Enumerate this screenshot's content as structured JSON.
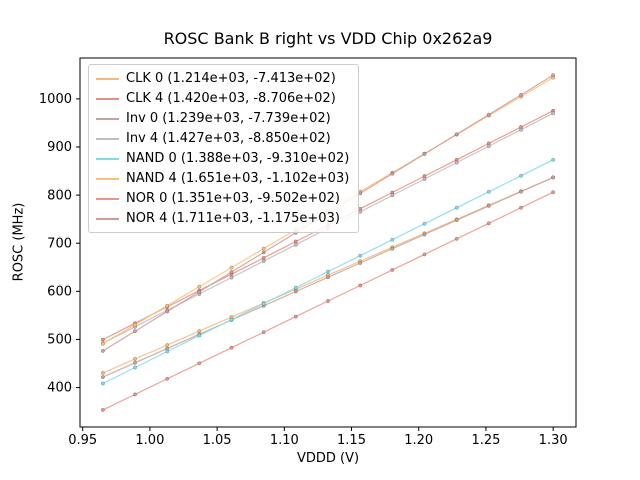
{
  "figure": {
    "title": "ROSC Bank B right vs VDD Chip 0x262a9",
    "xlabel": "VDDD (V)",
    "ylabel": "ROSC (MHz)"
  },
  "chart_data": {
    "type": "line",
    "title": "ROSC Bank B right vs VDD Chip 0x262a9",
    "xlabel": "VDDD (V)",
    "ylabel": "ROSC (MHz)",
    "xlim": [
      0.948,
      1.317
    ],
    "ylim": [
      318,
      1085
    ],
    "xticks": [
      0.95,
      1.0,
      1.05,
      1.1,
      1.15,
      1.2,
      1.25,
      1.3
    ],
    "xtick_labels": [
      "0.95",
      "1.00",
      "1.05",
      "1.10",
      "1.15",
      "1.20",
      "1.25",
      "1.30"
    ],
    "yticks": [
      400,
      500,
      600,
      700,
      800,
      900,
      1000
    ],
    "ytick_labels": [
      "400",
      "500",
      "600",
      "700",
      "800",
      "900",
      "1000"
    ],
    "x_points": {
      "start": 0.965,
      "end": 1.3,
      "count": 15
    },
    "grid": false,
    "legend_position": "upper left",
    "note": "each series is a linear fit ROSC = slope*VDDD + intercept, legend shows (slope, intercept)",
    "series": [
      {
        "name": "CLK 0",
        "label": "CLK 0 (1.214e+03, -7.413e+02)",
        "slope": 1214,
        "intercept": -741.3,
        "color": "#f5b97f"
      },
      {
        "name": "CLK 4",
        "label": "CLK 4 (1.420e+03, -8.706e+02)",
        "slope": 1420,
        "intercept": -870.6,
        "color": "#ec8b80"
      },
      {
        "name": "Inv 0",
        "label": "Inv 0 (1.239e+03, -7.739e+02)",
        "slope": 1239,
        "intercept": -773.9,
        "color": "#c0a49e"
      },
      {
        "name": "Inv 4",
        "label": "Inv 4 (1.427e+03, -8.850e+02)",
        "slope": 1427,
        "intercept": -885.0,
        "color": "#bdbdbd"
      },
      {
        "name": "NAND 0",
        "label": "NAND 0 (1.388e+03, -9.310e+02)",
        "slope": 1388,
        "intercept": -931.0,
        "color": "#85dbe4"
      },
      {
        "name": "NAND 4",
        "label": "NAND 4 (1.651e+03, -1.102e+03)",
        "slope": 1651,
        "intercept": -1102.0,
        "color": "#f9c178"
      },
      {
        "name": "NOR 0",
        "label": "NOR 0 (1.351e+03, -9.502e+02)",
        "slope": 1351,
        "intercept": -950.2,
        "color": "#e9958b"
      },
      {
        "name": "NOR 4",
        "label": "NOR 4 (1.711e+03, -1.175e+03)",
        "slope": 1711,
        "intercept": -1175.0,
        "color": "#cf9a9a"
      }
    ]
  }
}
